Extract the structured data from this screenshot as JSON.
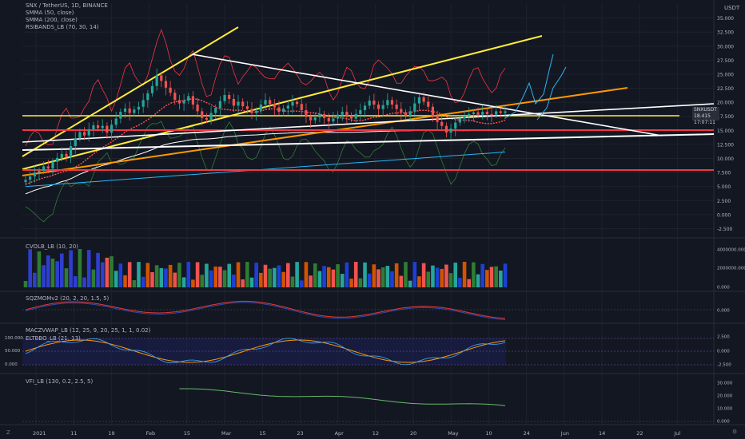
{
  "header": {
    "symbol_line": "SNX / TetherUS, 1D, BINANCE",
    "indicators": [
      "SMMA (50, close)",
      "SMMA (200, close)",
      "RSIBANDS_LB (70, 30, 14)"
    ],
    "currency": "USDT"
  },
  "price_tag": {
    "symbol": "SNXUSDT",
    "price": "18.415",
    "countdown": "17:07:11"
  },
  "panes": {
    "cvol": "CVOLB_LB (10, 20)",
    "sqz": "SQZMOMv2 (20, 2, 20, 1.5, 5)",
    "mac": "MACZVWAP_LB (12, 25, 9, 20, 25, 1, 1, 0.02)",
    "elt": "ELTBBO_LB (21, 13)",
    "vfi": "VFI_LB (130, 0.2, 2.5, 5)"
  },
  "bottom_bar": {
    "left_icon": "Z",
    "right_icon": "⚙"
  },
  "colors": {
    "bg": "#131722",
    "grid": "#1e222d",
    "up": "#26a69a",
    "down": "#ef5350",
    "yellow": "#ffeb3b",
    "orange": "#ff9800",
    "white": "#ffffff",
    "red_line": "#f23645",
    "sky": "#29b6f6",
    "green": "#1b5e20"
  },
  "chart_data": {
    "type": "candlestick",
    "x_ticks": [
      "2021",
      "11",
      "19",
      "Feb",
      "15",
      "Mar",
      "15",
      "23",
      "Apr",
      "12",
      "20",
      "May",
      "10",
      "24",
      "Jun",
      "14",
      "22",
      "Jul"
    ],
    "y_axis_labels": [
      "35.000",
      "32.500",
      "30.000",
      "27.500",
      "25.000",
      "22.500",
      "20.000",
      "17.500",
      "15.000",
      "12.500",
      "10.000",
      "7.500",
      "5.000",
      "2.500",
      "0.000",
      "-2.500"
    ],
    "ylim": [
      -3,
      37.5
    ],
    "cvol_axis": [
      "4000000.000",
      "2000000.000",
      "0.000"
    ],
    "sqz_axis": [
      "0.000"
    ],
    "mac_axis_left": [
      "100.000",
      "50.000",
      "0.000"
    ],
    "mac_axis_right": [
      "2.500",
      "0.000",
      "-2.500"
    ],
    "vfi_axis": [
      "30.000",
      "20.000",
      "10.000",
      "0.000"
    ],
    "close": [
      6.2,
      6.8,
      7.5,
      7.8,
      8.6,
      8.2,
      9.4,
      10.1,
      10.8,
      10.3,
      12.2,
      13.6,
      14.7,
      14.1,
      15.2,
      15.9,
      15.4,
      15.8,
      14.6,
      16.0,
      17.1,
      18.3,
      18.9,
      18.1,
      18.7,
      19.2,
      20.4,
      21.6,
      22.9,
      24.8,
      23.8,
      22.6,
      21.7,
      20.4,
      19.8,
      20.3,
      21.1,
      19.6,
      18.4,
      17.2,
      16.9,
      18.1,
      19.0,
      20.2,
      21.3,
      20.6,
      19.4,
      20.1,
      19.3,
      18.8,
      18.1,
      18.5,
      19.6,
      20.4,
      19.7,
      19.1,
      18.3,
      18.9,
      19.4,
      20.1,
      19.7,
      18.6,
      17.4,
      16.8,
      17.3,
      17.9,
      17.2,
      16.6,
      17.1,
      17.8,
      18.3,
      17.6,
      17.1,
      17.9,
      18.6,
      19.4,
      20.3,
      19.6,
      18.8,
      19.5,
      20.4,
      19.6,
      18.8,
      18.2,
      17.6,
      18.4,
      19.8,
      20.9,
      20.1,
      19.2,
      17.6,
      16.5,
      15.8,
      14.6,
      15.3,
      16.4,
      17.1,
      17.6,
      17.9,
      18.2,
      17.8,
      18.3,
      17.9,
      17.8,
      18.4,
      18.1,
      18.4
    ]
  }
}
